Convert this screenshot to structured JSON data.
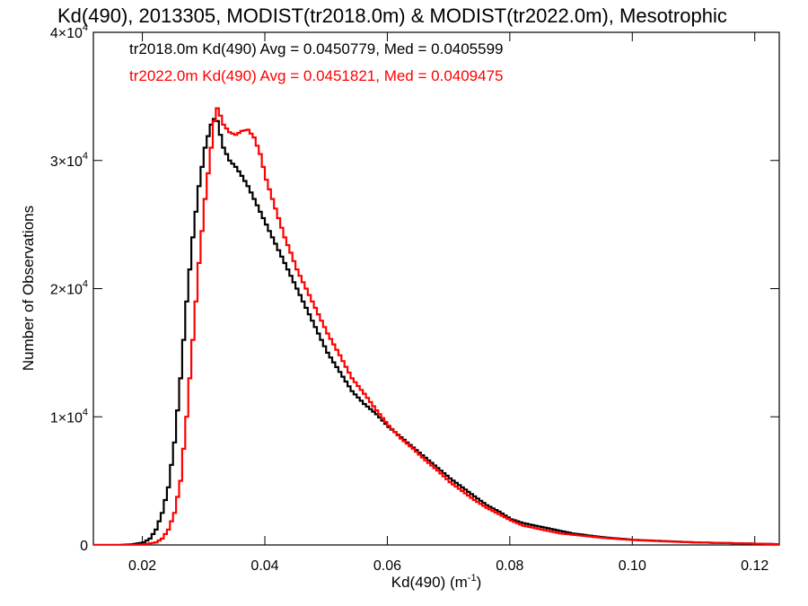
{
  "chart_data": {
    "type": "line",
    "title": "Kd(490), 2013305, MODIST(tr2018.0m) & MODIST(tr2022.0m), Mesotrophic",
    "xlabel_main": "Kd(490) (m",
    "xlabel_sup": "-1",
    "xlabel_tail": ")",
    "ylabel": "Number of Observations",
    "xlim": [
      0.012,
      0.124
    ],
    "ylim": [
      0,
      40000
    ],
    "x_ticks": [
      {
        "value": 0.02,
        "label": "0.02"
      },
      {
        "value": 0.04,
        "label": "0.04"
      },
      {
        "value": 0.06,
        "label": "0.06"
      },
      {
        "value": 0.08,
        "label": "0.08"
      },
      {
        "value": 0.1,
        "label": "0.10"
      },
      {
        "value": 0.12,
        "label": "0.12"
      }
    ],
    "y_ticks": [
      {
        "value": 0,
        "base": "0",
        "exp": ""
      },
      {
        "value": 10000,
        "base": "1×10",
        "exp": "4"
      },
      {
        "value": 20000,
        "base": "2×10",
        "exp": "4"
      },
      {
        "value": 30000,
        "base": "3×10",
        "exp": "4"
      },
      {
        "value": 40000,
        "base": "4×10",
        "exp": "4"
      }
    ],
    "legend": [
      {
        "text": "tr2018.0m Kd(490) Avg = 0.0450779, Med = 0.0405599",
        "color": "#000000"
      },
      {
        "text": "tr2022.0m Kd(490) Avg = 0.0451821, Med = 0.0409475",
        "color": "#ff0000"
      }
    ],
    "series": [
      {
        "color": "#000000",
        "points": [
          [
            0.012,
            0
          ],
          [
            0.016,
            0
          ],
          [
            0.018,
            50
          ],
          [
            0.02,
            200
          ],
          [
            0.021,
            500
          ],
          [
            0.022,
            1200
          ],
          [
            0.023,
            2500
          ],
          [
            0.024,
            4500
          ],
          [
            0.025,
            8000
          ],
          [
            0.026,
            13000
          ],
          [
            0.027,
            19000
          ],
          [
            0.028,
            24000
          ],
          [
            0.029,
            28000
          ],
          [
            0.03,
            31000
          ],
          [
            0.031,
            32800
          ],
          [
            0.0318,
            33500
          ],
          [
            0.0325,
            32000
          ],
          [
            0.033,
            31000
          ],
          [
            0.034,
            30000
          ],
          [
            0.035,
            29500
          ],
          [
            0.036,
            28800
          ],
          [
            0.037,
            28000
          ],
          [
            0.038,
            27000
          ],
          [
            0.039,
            26000
          ],
          [
            0.04,
            25000
          ],
          [
            0.041,
            24000
          ],
          [
            0.042,
            23000
          ],
          [
            0.043,
            22000
          ],
          [
            0.044,
            21000
          ],
          [
            0.045,
            20000
          ],
          [
            0.046,
            19000
          ],
          [
            0.047,
            18000
          ],
          [
            0.048,
            17000
          ],
          [
            0.049,
            16000
          ],
          [
            0.05,
            15000
          ],
          [
            0.052,
            13500
          ],
          [
            0.054,
            12000
          ],
          [
            0.056,
            11000
          ],
          [
            0.058,
            10200
          ],
          [
            0.06,
            9200
          ],
          [
            0.062,
            8400
          ],
          [
            0.064,
            7600
          ],
          [
            0.066,
            6800
          ],
          [
            0.068,
            6000
          ],
          [
            0.07,
            5200
          ],
          [
            0.072,
            4500
          ],
          [
            0.074,
            3800
          ],
          [
            0.076,
            3100
          ],
          [
            0.078,
            2600
          ],
          [
            0.08,
            2000
          ],
          [
            0.082,
            1700
          ],
          [
            0.084,
            1500
          ],
          [
            0.086,
            1300
          ],
          [
            0.088,
            1100
          ],
          [
            0.09,
            900
          ],
          [
            0.095,
            600
          ],
          [
            0.1,
            400
          ],
          [
            0.105,
            300
          ],
          [
            0.11,
            200
          ],
          [
            0.115,
            150
          ],
          [
            0.12,
            100
          ],
          [
            0.124,
            50
          ]
        ]
      },
      {
        "color": "#ff0000",
        "points": [
          [
            0.012,
            0
          ],
          [
            0.018,
            0
          ],
          [
            0.02,
            50
          ],
          [
            0.022,
            200
          ],
          [
            0.023,
            500
          ],
          [
            0.024,
            1200
          ],
          [
            0.025,
            2500
          ],
          [
            0.026,
            5000
          ],
          [
            0.027,
            10000
          ],
          [
            0.028,
            16000
          ],
          [
            0.029,
            22000
          ],
          [
            0.03,
            27000
          ],
          [
            0.031,
            31000
          ],
          [
            0.0318,
            34300
          ],
          [
            0.0325,
            33500
          ],
          [
            0.033,
            32800
          ],
          [
            0.034,
            32200
          ],
          [
            0.035,
            32000
          ],
          [
            0.036,
            32300
          ],
          [
            0.037,
            32400
          ],
          [
            0.038,
            31800
          ],
          [
            0.039,
            30500
          ],
          [
            0.04,
            28500
          ],
          [
            0.041,
            27000
          ],
          [
            0.042,
            25500
          ],
          [
            0.043,
            24000
          ],
          [
            0.044,
            22800
          ],
          [
            0.045,
            21500
          ],
          [
            0.046,
            20500
          ],
          [
            0.047,
            19500
          ],
          [
            0.048,
            18500
          ],
          [
            0.049,
            17500
          ],
          [
            0.05,
            16500
          ],
          [
            0.052,
            14800
          ],
          [
            0.054,
            13000
          ],
          [
            0.056,
            11800
          ],
          [
            0.058,
            10500
          ],
          [
            0.06,
            9300
          ],
          [
            0.062,
            8300
          ],
          [
            0.064,
            7500
          ],
          [
            0.066,
            6600
          ],
          [
            0.068,
            5800
          ],
          [
            0.07,
            4900
          ],
          [
            0.072,
            4200
          ],
          [
            0.074,
            3500
          ],
          [
            0.076,
            2900
          ],
          [
            0.078,
            2400
          ],
          [
            0.08,
            1900
          ],
          [
            0.082,
            1500
          ],
          [
            0.084,
            1300
          ],
          [
            0.086,
            1100
          ],
          [
            0.088,
            900
          ],
          [
            0.09,
            800
          ],
          [
            0.095,
            550
          ],
          [
            0.1,
            380
          ],
          [
            0.105,
            280
          ],
          [
            0.11,
            200
          ],
          [
            0.115,
            150
          ],
          [
            0.12,
            100
          ],
          [
            0.124,
            60
          ]
        ]
      }
    ]
  }
}
